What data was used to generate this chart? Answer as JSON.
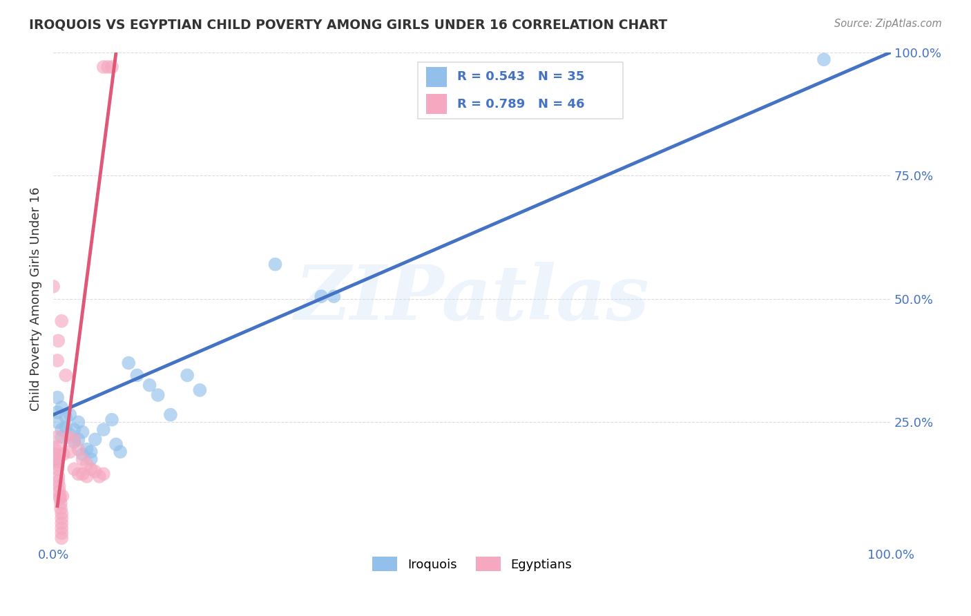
{
  "title": "IROQUOIS VS EGYPTIAN CHILD POVERTY AMONG GIRLS UNDER 16 CORRELATION CHART",
  "source": "Source: ZipAtlas.com",
  "ylabel": "Child Poverty Among Girls Under 16",
  "xlim": [
    0,
    1
  ],
  "ylim": [
    0,
    1
  ],
  "iroquois_color": "#92c0ea",
  "egyptian_color": "#f5a8c0",
  "iroquois_line_color": "#4472c4",
  "egyptian_line_color": "#e05878",
  "R_iroquois": 0.543,
  "N_iroquois": 35,
  "R_egyptian": 0.789,
  "N_egyptian": 46,
  "legend_label_iroquois": "Iroquois",
  "legend_label_egyptian": "Egyptians",
  "watermark": "ZIPatlas",
  "iroquois_scatter": [
    [
      0.005,
      0.27
    ],
    [
      0.005,
      0.25
    ],
    [
      0.01,
      0.28
    ],
    [
      0.01,
      0.235
    ],
    [
      0.01,
      0.22
    ],
    [
      0.015,
      0.26
    ],
    [
      0.015,
      0.24
    ],
    [
      0.02,
      0.265
    ],
    [
      0.02,
      0.225
    ],
    [
      0.025,
      0.235
    ],
    [
      0.025,
      0.21
    ],
    [
      0.03,
      0.25
    ],
    [
      0.03,
      0.215
    ],
    [
      0.035,
      0.23
    ],
    [
      0.035,
      0.185
    ],
    [
      0.04,
      0.195
    ],
    [
      0.045,
      0.175
    ],
    [
      0.045,
      0.19
    ],
    [
      0.05,
      0.215
    ],
    [
      0.06,
      0.235
    ],
    [
      0.07,
      0.255
    ],
    [
      0.075,
      0.205
    ],
    [
      0.08,
      0.19
    ],
    [
      0.09,
      0.37
    ],
    [
      0.1,
      0.345
    ],
    [
      0.115,
      0.325
    ],
    [
      0.125,
      0.305
    ],
    [
      0.14,
      0.265
    ],
    [
      0.16,
      0.345
    ],
    [
      0.175,
      0.315
    ],
    [
      0.265,
      0.57
    ],
    [
      0.32,
      0.505
    ],
    [
      0.335,
      0.505
    ],
    [
      0.92,
      0.985
    ],
    [
      0.005,
      0.3
    ]
  ],
  "egyptian_scatter": [
    [
      0.0,
      0.525
    ],
    [
      0.002,
      0.195
    ],
    [
      0.003,
      0.185
    ],
    [
      0.004,
      0.175
    ],
    [
      0.004,
      0.165
    ],
    [
      0.005,
      0.22
    ],
    [
      0.005,
      0.2
    ],
    [
      0.005,
      0.17
    ],
    [
      0.005,
      0.155
    ],
    [
      0.006,
      0.14
    ],
    [
      0.006,
      0.13
    ],
    [
      0.007,
      0.12
    ],
    [
      0.007,
      0.11
    ],
    [
      0.008,
      0.1
    ],
    [
      0.008,
      0.095
    ],
    [
      0.009,
      0.085
    ],
    [
      0.009,
      0.075
    ],
    [
      0.01,
      0.065
    ],
    [
      0.01,
      0.055
    ],
    [
      0.01,
      0.045
    ],
    [
      0.01,
      0.035
    ],
    [
      0.01,
      0.025
    ],
    [
      0.01,
      0.015
    ],
    [
      0.011,
      0.1
    ],
    [
      0.012,
      0.185
    ],
    [
      0.015,
      0.345
    ],
    [
      0.018,
      0.22
    ],
    [
      0.02,
      0.19
    ],
    [
      0.025,
      0.155
    ],
    [
      0.025,
      0.215
    ],
    [
      0.03,
      0.195
    ],
    [
      0.03,
      0.145
    ],
    [
      0.035,
      0.175
    ],
    [
      0.035,
      0.145
    ],
    [
      0.04,
      0.165
    ],
    [
      0.04,
      0.14
    ],
    [
      0.045,
      0.155
    ],
    [
      0.05,
      0.15
    ],
    [
      0.055,
      0.14
    ],
    [
      0.06,
      0.145
    ],
    [
      0.005,
      0.375
    ],
    [
      0.006,
      0.415
    ],
    [
      0.01,
      0.455
    ],
    [
      0.06,
      0.97
    ],
    [
      0.065,
      0.97
    ],
    [
      0.07,
      0.97
    ]
  ],
  "iroquois_line": [
    [
      0.0,
      0.265
    ],
    [
      1.0,
      1.0
    ]
  ],
  "egyptian_line": [
    [
      0.005,
      0.08
    ],
    [
      0.075,
      1.0
    ]
  ],
  "background_color": "#ffffff",
  "grid_color": "#cccccc",
  "title_color": "#333333",
  "tick_label_color": "#4472c4"
}
